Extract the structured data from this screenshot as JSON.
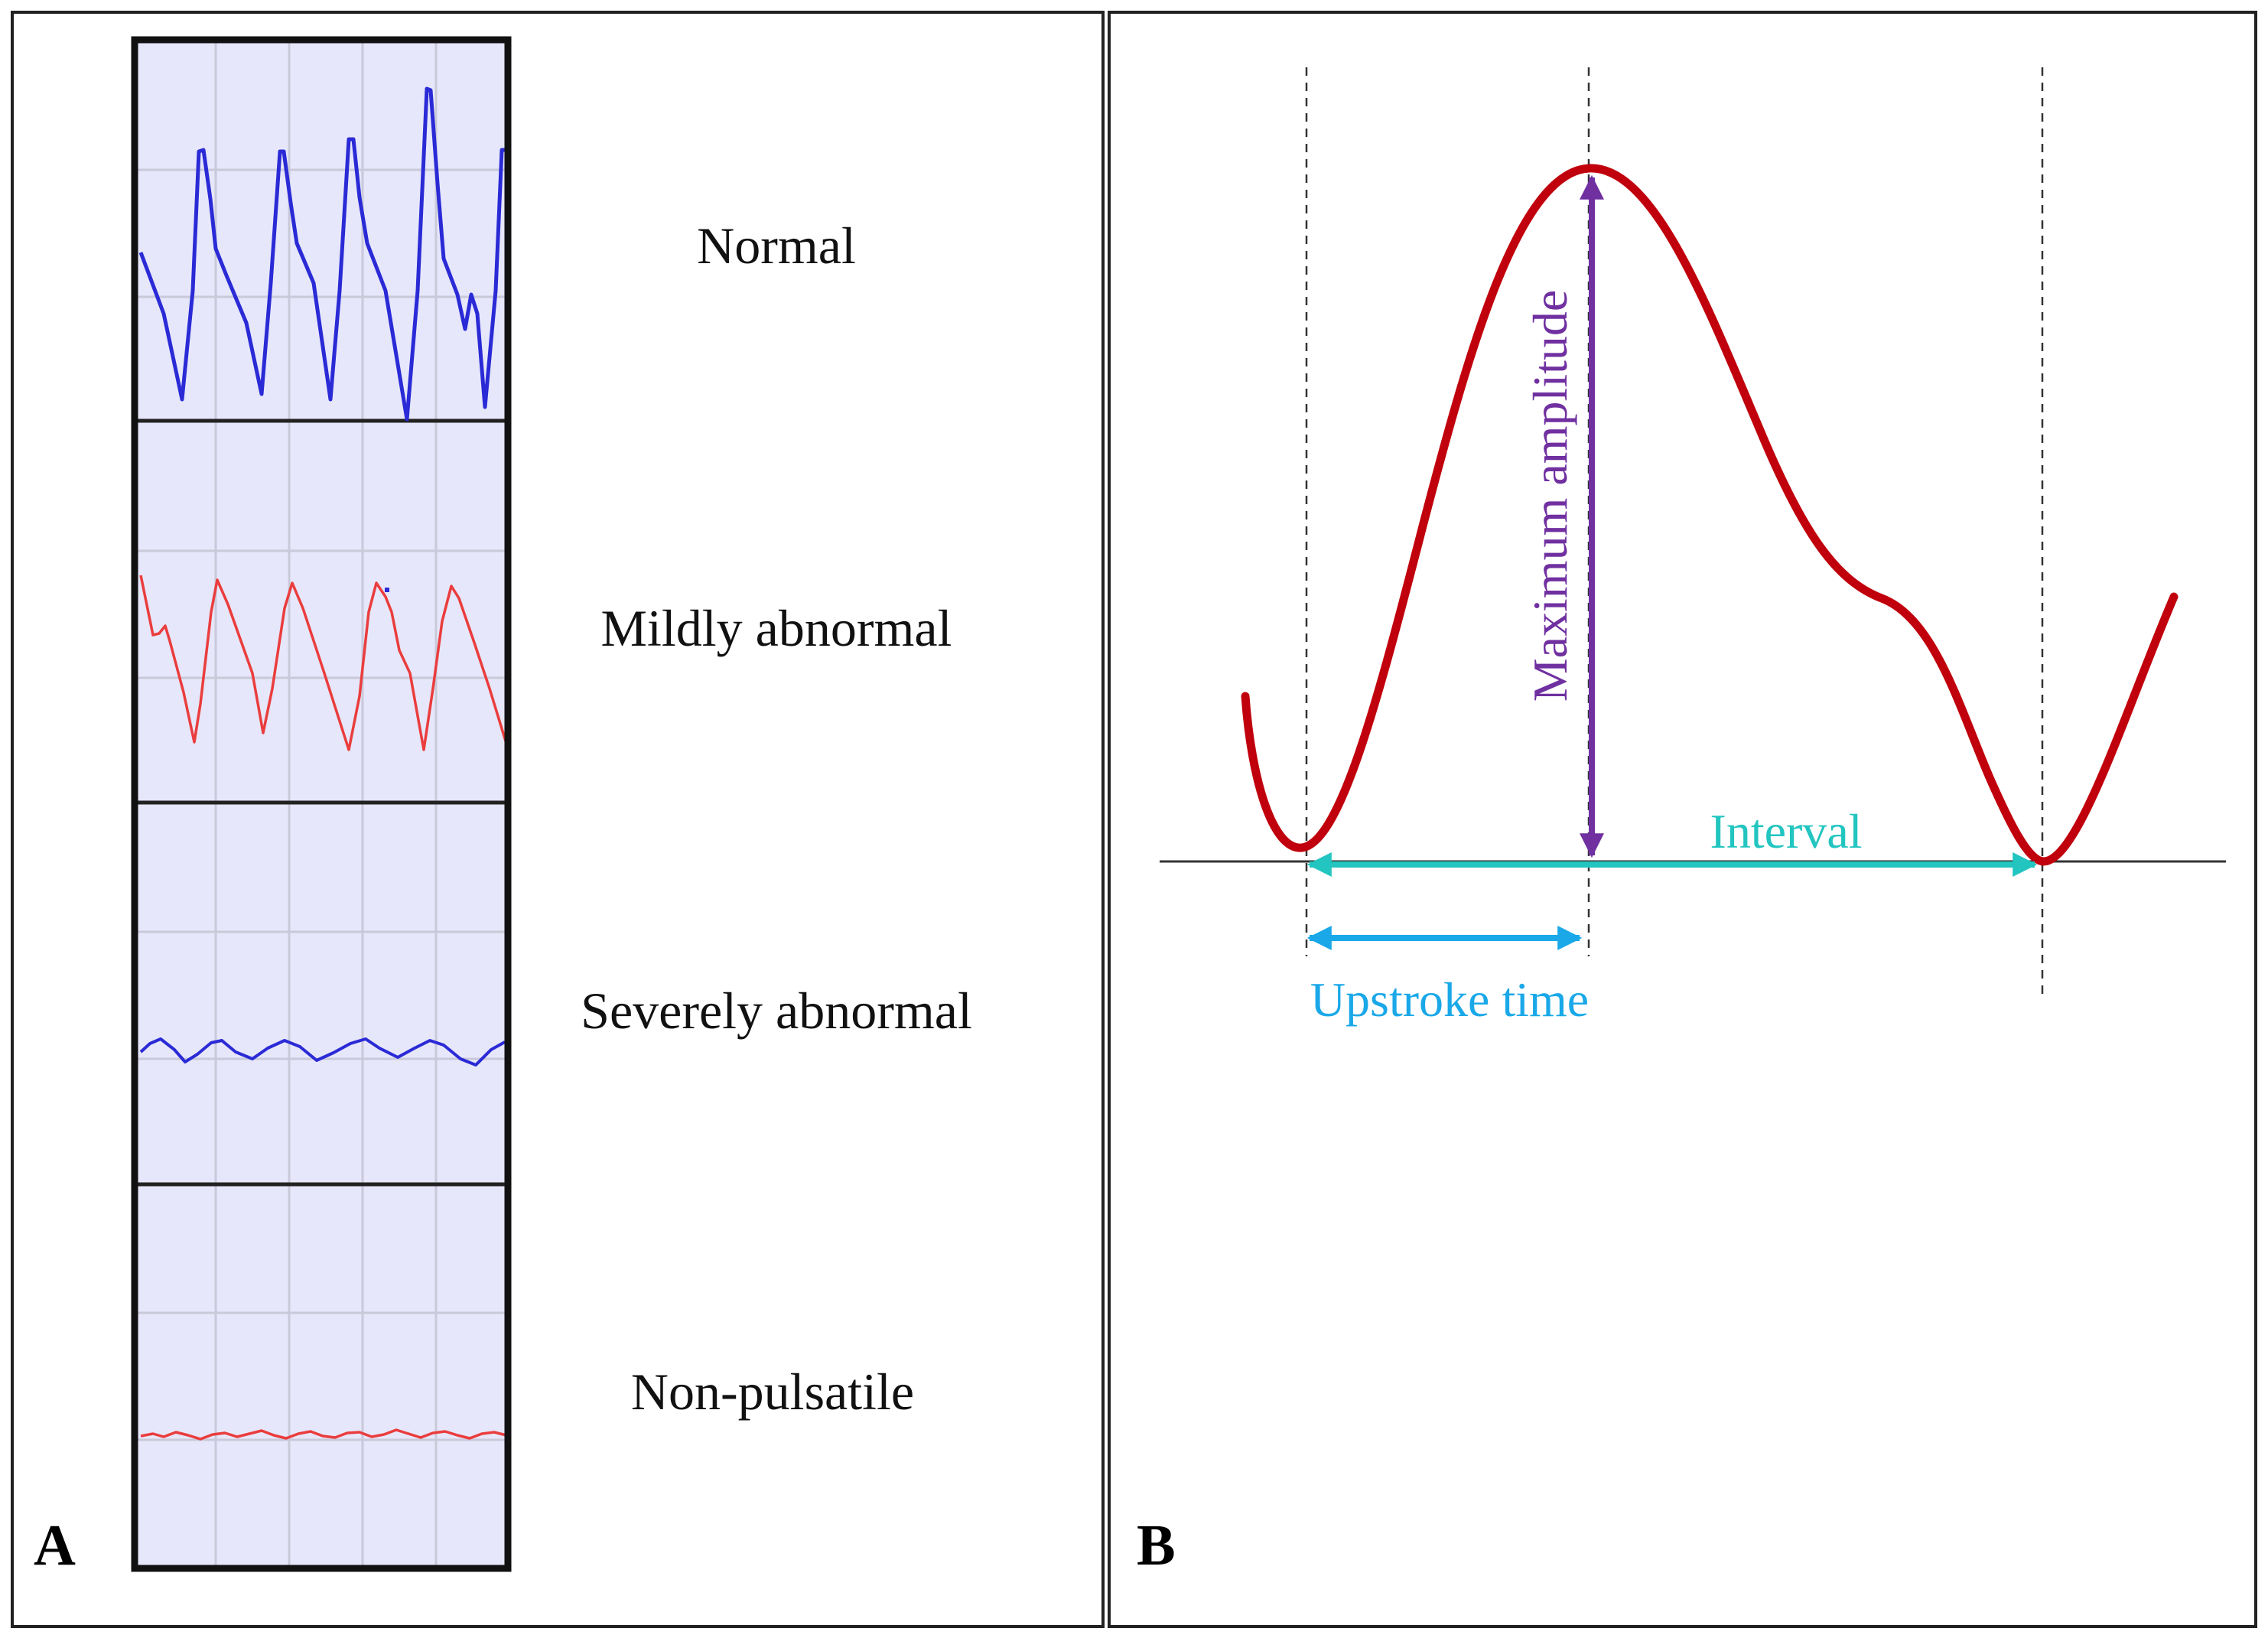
{
  "panel_a": {
    "letter": "A",
    "rows": [
      {
        "label": "Normal",
        "trace_color": "#2a2ad6"
      },
      {
        "label": "Mildly abnormal",
        "trace_color": "#ea3d3d"
      },
      {
        "label": "Severely abnormal",
        "trace_color": "#2a2ad6"
      },
      {
        "label": "Non-pulsatile",
        "trace_color": "#ea3d3d"
      }
    ]
  },
  "panel_b": {
    "letter": "B",
    "labels": {
      "maximum_amplitude": "Maximum amplitude",
      "interval": "Interval",
      "upstroke_time": "Upstroke time"
    },
    "colors": {
      "waveform": "#c0000c",
      "amplitude_arrow": "#7030a0",
      "interval_arrow": "#22c5c0",
      "upstroke_arrow": "#1aa8e8",
      "interval_text": "#22c5c0",
      "upstroke_text": "#1aa8e8"
    }
  },
  "colors": {
    "strip_background": "#e7e7fb",
    "strip_grid": "#c9c9da",
    "frame": "#222222"
  }
}
